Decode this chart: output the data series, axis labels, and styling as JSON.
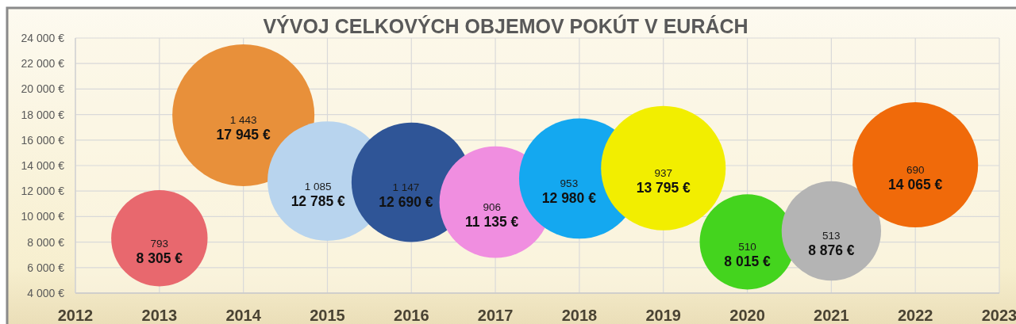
{
  "chart_data": {
    "type": "bubble",
    "title": "VÝVOJ CELKOVÝCH OBJEMOV POKÚT V EURÁCH",
    "x": [
      2013,
      2014,
      2015,
      2016,
      2017,
      2018,
      2019,
      2020,
      2021,
      2022
    ],
    "values": [
      8305,
      17945,
      12785,
      12690,
      11135,
      12980,
      13795,
      8015,
      8876,
      14065
    ],
    "sizes": [
      0.46,
      1,
      0.71,
      0.71,
      0.62,
      0.72,
      0.77,
      0.45,
      0.49,
      0.78
    ],
    "value_labels": [
      "8 305 €",
      "17 945 €",
      "12 785 €",
      "12 690 €",
      "11 135 €",
      "12 980 €",
      "13 795 €",
      "8 015 €",
      "8 876 €",
      "14 065 €"
    ],
    "annotations": [
      {
        "text": "793",
        "x": 2013,
        "y": 8305
      },
      {
        "text": "1 443",
        "x": 2014,
        "y": 17945
      },
      {
        "text": "1 085",
        "x": 2015,
        "y": 12785
      },
      {
        "text": "1 147",
        "x": 2016,
        "y": 12690
      },
      {
        "text": "906",
        "x": 2017,
        "y": 11135
      },
      {
        "text": "953",
        "x": 2018,
        "y": 12980
      },
      {
        "text": "937",
        "x": 2019,
        "y": 13795
      },
      {
        "text": "510",
        "x": 2020,
        "y": 8015
      },
      {
        "text": "513",
        "x": 2021,
        "y": 8876
      },
      {
        "text": "690",
        "x": 2022,
        "y": 14065
      }
    ],
    "colors": [
      "#e8686e",
      "#e8903a",
      "#b8d4ee",
      "#2f5597",
      "#f08ee0",
      "#14a8f0",
      "#f2ee00",
      "#44d41e",
      "#b4b4b4",
      "#f06a0a"
    ],
    "xlim": [
      2012,
      2023
    ],
    "xticks": [
      2012,
      2013,
      2014,
      2015,
      2016,
      2017,
      2018,
      2019,
      2020,
      2021,
      2022,
      2023
    ],
    "ylim": [
      4000,
      24000
    ],
    "yticks": [
      {
        "value": 4000,
        "label": "4 000 €"
      },
      {
        "value": 6000,
        "label": "6 000 €"
      },
      {
        "value": 8000,
        "label": "8 000 €"
      },
      {
        "value": 10000,
        "label": "10 000 €"
      },
      {
        "value": 12000,
        "label": "12 000 €"
      },
      {
        "value": 14000,
        "label": "14 000 €"
      },
      {
        "value": 16000,
        "label": "16 000 €"
      },
      {
        "value": 18000,
        "label": "18 000 €"
      },
      {
        "value": 20000,
        "label": "20 000 €"
      },
      {
        "value": 22000,
        "label": "22 000 €"
      },
      {
        "value": 24000,
        "label": "24 000 €"
      }
    ],
    "grid": true
  }
}
